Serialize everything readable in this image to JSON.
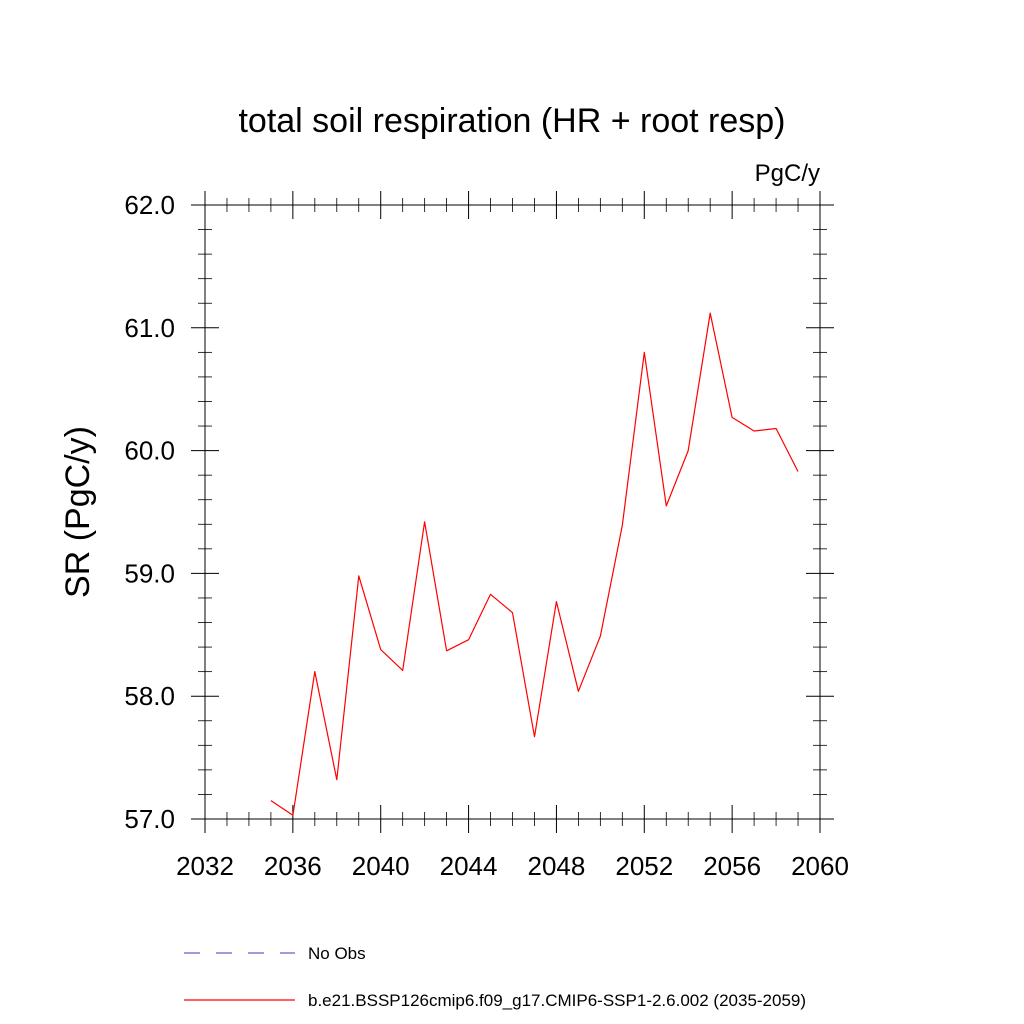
{
  "chart_data": {
    "type": "line",
    "title": "total soil respiration (HR + root resp)",
    "units": "PgC/y",
    "xlabel": "",
    "ylabel": "SR  (PgC/y)",
    "xlim": [
      2032,
      2060
    ],
    "ylim": [
      57.0,
      62.0
    ],
    "x_ticks": [
      2032,
      2036,
      2040,
      2044,
      2048,
      2052,
      2056,
      2060
    ],
    "x_tick_labels": [
      "2032",
      "2036",
      "2040",
      "2044",
      "2048",
      "2052",
      "2056",
      "2060"
    ],
    "y_ticks": [
      57.0,
      58.0,
      59.0,
      60.0,
      61.0,
      62.0
    ],
    "y_tick_labels": [
      "57.0",
      "58.0",
      "59.0",
      "60.0",
      "61.0",
      "62.0"
    ],
    "grid": false,
    "legend_position": "bottom",
    "series": [
      {
        "name": "No Obs",
        "color": "#6a5acd",
        "dash": "dashed",
        "x": [],
        "y": []
      },
      {
        "name": "b.e21.BSSP126cmip6.f09_g17.CMIP6-SSP1-2.6.002 (2035-2059)",
        "color": "#ff0000",
        "dash": "solid",
        "x": [
          2035,
          2036,
          2037,
          2038,
          2039,
          2040,
          2041,
          2042,
          2043,
          2044,
          2045,
          2046,
          2047,
          2048,
          2049,
          2050,
          2051,
          2052,
          2053,
          2054,
          2055,
          2056,
          2057,
          2058,
          2059
        ],
        "y": [
          57.15,
          57.03,
          58.2,
          57.32,
          58.98,
          58.38,
          58.21,
          59.42,
          58.37,
          58.46,
          58.83,
          58.68,
          57.67,
          58.77,
          58.04,
          58.49,
          59.39,
          60.8,
          59.55,
          60.0,
          61.12,
          60.27,
          60.16,
          60.18,
          59.83
        ]
      }
    ]
  }
}
